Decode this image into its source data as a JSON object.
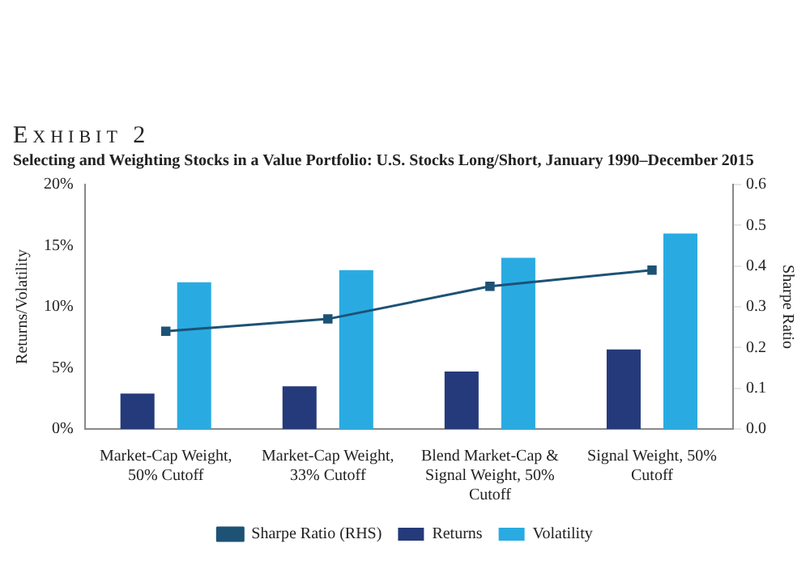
{
  "chart_data": {
    "type": "bar",
    "title": "Exhibit 2",
    "subtitle": "Selecting and Weighting Stocks in a Value Portfolio: U.S. Stocks Long/Short, January 1990–December 2015",
    "categories": [
      "Market-Cap Weight, 50% Cutoff",
      "Market-Cap Weight, 33% Cutoff",
      "Blend Market-Cap & Signal Weight, 50% Cutoff",
      "Signal Weight, 50% Cutoff"
    ],
    "series": [
      {
        "name": "Returns",
        "color": "#253a7a",
        "values": [
          2.9,
          3.5,
          4.7,
          6.5
        ]
      },
      {
        "name": "Volatility",
        "color": "#29abe2",
        "values": [
          12,
          13,
          14,
          16
        ]
      },
      {
        "name": "Sharpe Ratio (RHS)",
        "type": "line",
        "axis": "y2",
        "color": "#1d5275",
        "values": [
          0.24,
          0.27,
          0.35,
          0.39
        ]
      }
    ],
    "ylabel": "Returns/Volatility",
    "y2label": "Sharpe Ratio",
    "ylim": [
      0,
      20
    ],
    "yticks": [
      {
        "value": 0,
        "label": "0%"
      },
      {
        "value": 5,
        "label": "5%"
      },
      {
        "value": 10,
        "label": "10%"
      },
      {
        "value": 15,
        "label": "15%"
      },
      {
        "value": 20,
        "label": "20%"
      }
    ],
    "y2lim": [
      0,
      0.6
    ],
    "y2ticks": [
      {
        "value": 0,
        "label": "0.0"
      },
      {
        "value": 0.1,
        "label": "0.1"
      },
      {
        "value": 0.2,
        "label": "0.2"
      },
      {
        "value": 0.3,
        "label": "0.3"
      },
      {
        "value": 0.4,
        "label": "0.4"
      },
      {
        "value": 0.5,
        "label": "0.5"
      },
      {
        "value": 0.6,
        "label": "0.6"
      }
    ],
    "grid": false,
    "legend": "bottom",
    "marker": "square",
    "line_style": "solid"
  }
}
